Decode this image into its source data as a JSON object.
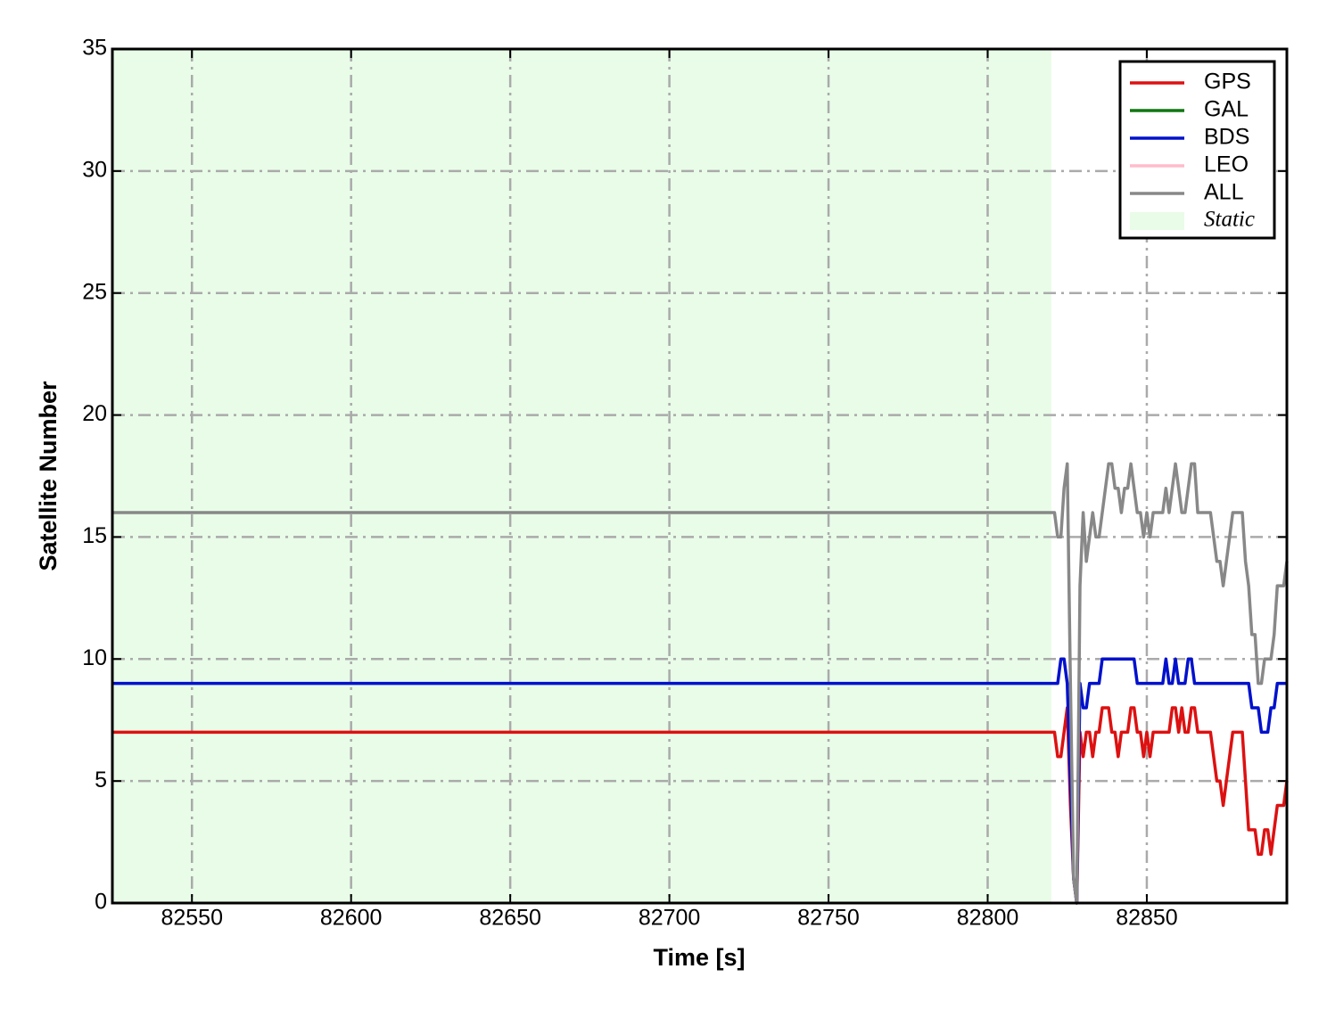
{
  "chart_data": {
    "type": "line",
    "xlabel": "Time [s]",
    "ylabel": "Satellite Number",
    "x": [
      82525,
      82820,
      82821,
      82822,
      82823,
      82824,
      82825,
      82826,
      82827,
      82828,
      82829,
      82830,
      82831,
      82832,
      82833,
      82834,
      82835,
      82836,
      82837,
      82838,
      82839,
      82840,
      82841,
      82842,
      82843,
      82844,
      82845,
      82846,
      82847,
      82848,
      82849,
      82850,
      82851,
      82852,
      82853,
      82854,
      82855,
      82856,
      82857,
      82858,
      82859,
      82860,
      82861,
      82862,
      82863,
      82864,
      82865,
      82866,
      82867,
      82868,
      82869,
      82870,
      82871,
      82872,
      82873,
      82874,
      82875,
      82876,
      82877,
      82878,
      82879,
      82880,
      82881,
      82882,
      82883,
      82884,
      82885,
      82886,
      82887,
      82888,
      82889,
      82890,
      82891,
      82892,
      82893,
      82894
    ],
    "series": [
      {
        "name": "GPS",
        "color": "#dd1111",
        "values": [
          7,
          7,
          7,
          6,
          6,
          7,
          8,
          4,
          1,
          0,
          7,
          6,
          7,
          7,
          6,
          7,
          7,
          8,
          8,
          8,
          7,
          7,
          6,
          7,
          7,
          7,
          8,
          8,
          7,
          7,
          6,
          7,
          6,
          7,
          7,
          7,
          7,
          7,
          7,
          8,
          8,
          7,
          8,
          7,
          7,
          8,
          8,
          7,
          7,
          7,
          7,
          7,
          6,
          5,
          5,
          4,
          5,
          6,
          7,
          7,
          7,
          7,
          5,
          3,
          3,
          3,
          2,
          2,
          3,
          3,
          2,
          3,
          4,
          4,
          4,
          5
        ]
      },
      {
        "name": "GAL",
        "color": "#117711",
        "values": [
          null,
          null,
          null,
          null,
          null,
          null,
          null,
          null,
          null,
          null,
          null,
          null,
          null,
          null,
          null,
          null,
          null,
          null,
          null,
          null,
          null,
          null,
          null,
          null,
          null,
          null,
          null,
          null,
          null,
          null,
          null,
          null,
          null,
          null,
          null,
          null,
          null,
          null,
          null,
          null,
          null,
          null,
          null,
          null,
          null,
          null,
          null,
          null,
          null,
          null,
          null,
          null,
          null,
          null,
          null,
          null,
          null,
          null,
          null,
          null,
          null,
          null,
          null,
          null,
          null,
          null,
          null,
          null,
          null,
          null,
          null,
          null,
          null,
          null,
          null,
          null
        ]
      },
      {
        "name": "BDS",
        "color": "#0011cc",
        "values": [
          9,
          9,
          9,
          9,
          10,
          10,
          9,
          5,
          1,
          0,
          9,
          8,
          8,
          9,
          9,
          9,
          9,
          10,
          10,
          10,
          10,
          10,
          10,
          10,
          10,
          10,
          10,
          10,
          9,
          9,
          9,
          9,
          9,
          9,
          9,
          9,
          9,
          10,
          9,
          9,
          10,
          9,
          9,
          9,
          10,
          10,
          9,
          9,
          9,
          9,
          9,
          9,
          9,
          9,
          9,
          9,
          9,
          9,
          9,
          9,
          9,
          9,
          9,
          9,
          8,
          8,
          8,
          7,
          7,
          7,
          8,
          8,
          9,
          9,
          9,
          9
        ]
      },
      {
        "name": "LEO",
        "color": "#ffbbcc",
        "values": [
          null,
          null,
          null,
          null,
          null,
          null,
          null,
          null,
          null,
          null,
          null,
          null,
          null,
          null,
          null,
          null,
          null,
          null,
          null,
          null,
          null,
          null,
          null,
          null,
          null,
          null,
          null,
          null,
          null,
          null,
          null,
          null,
          null,
          null,
          null,
          null,
          null,
          null,
          null,
          null,
          null,
          null,
          null,
          null,
          null,
          null,
          null,
          null,
          null,
          null,
          null,
          null,
          null,
          null,
          null,
          null,
          null,
          null,
          null,
          null,
          null,
          null,
          null,
          null,
          null,
          null,
          null,
          null,
          null,
          null,
          null,
          null,
          null,
          null,
          null,
          null
        ]
      },
      {
        "name": "ALL",
        "color": "#888888",
        "values": [
          16,
          16,
          16,
          15,
          15,
          17,
          18,
          9,
          1,
          0,
          13,
          16,
          14,
          15,
          16,
          15,
          15,
          16,
          17,
          18,
          18,
          17,
          17,
          16,
          17,
          17,
          18,
          17,
          16,
          16,
          15,
          16,
          15,
          16,
          16,
          16,
          16,
          17,
          16,
          17,
          18,
          17,
          16,
          16,
          17,
          18,
          18,
          16,
          16,
          16,
          16,
          16,
          15,
          14,
          14,
          13,
          14,
          15,
          16,
          16,
          16,
          16,
          14,
          13,
          11,
          11,
          9,
          9,
          10,
          10,
          10,
          11,
          13,
          13,
          13,
          14
        ]
      }
    ],
    "span": {
      "label": "Static",
      "from": 82525,
      "to": 82820,
      "color": "#e8fce8"
    },
    "xlim": [
      82525,
      82894
    ],
    "xticks": [
      82550,
      82600,
      82650,
      82700,
      82750,
      82800,
      82850
    ],
    "ylim": [
      0,
      35
    ],
    "yticks": [
      0,
      5,
      10,
      15,
      20,
      25,
      30,
      35
    ],
    "grid": true,
    "legend": "upper right"
  }
}
